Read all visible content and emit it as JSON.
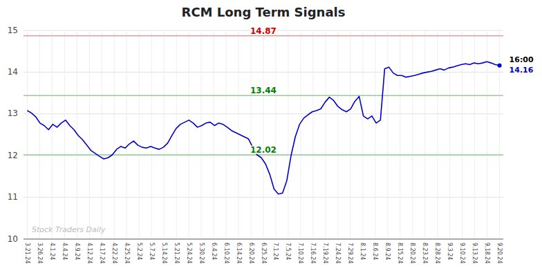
{
  "chart_data": {
    "type": "line",
    "title": "RCM Long Term Signals",
    "color": "#0000cc",
    "grid": true,
    "xlim": [
      -0.3,
      38.3
    ],
    "ylim": [
      10,
      15
    ],
    "yticks": [
      10,
      11,
      12,
      13,
      14,
      15
    ],
    "xticks": [
      {
        "value": 0,
        "label": "3.21.24"
      },
      {
        "value": 1,
        "label": "3.26.24"
      },
      {
        "value": 2,
        "label": "4.1.24"
      },
      {
        "value": 3,
        "label": "4.4.24"
      },
      {
        "value": 4,
        "label": "4.9.24"
      },
      {
        "value": 5,
        "label": "4.12.24"
      },
      {
        "value": 6,
        "label": "4.17.24"
      },
      {
        "value": 7,
        "label": "4.22.24"
      },
      {
        "value": 8,
        "label": "4.25.24"
      },
      {
        "value": 9,
        "label": "5.2.24"
      },
      {
        "value": 10,
        "label": "5.7.24"
      },
      {
        "value": 11,
        "label": "5.14.24"
      },
      {
        "value": 12,
        "label": "5.21.24"
      },
      {
        "value": 13,
        "label": "5.24.24"
      },
      {
        "value": 14,
        "label": "5.30.24"
      },
      {
        "value": 15,
        "label": "6.4.24"
      },
      {
        "value": 16,
        "label": "6.10.24"
      },
      {
        "value": 17,
        "label": "6.14.24"
      },
      {
        "value": 18,
        "label": "6.20.24"
      },
      {
        "value": 19,
        "label": "6.25.24"
      },
      {
        "value": 20,
        "label": "7.1.24"
      },
      {
        "value": 21,
        "label": "7.5.24"
      },
      {
        "value": 22,
        "label": "7.10.24"
      },
      {
        "value": 23,
        "label": "7.16.24"
      },
      {
        "value": 24,
        "label": "7.19.24"
      },
      {
        "value": 25,
        "label": "7.24.24"
      },
      {
        "value": 26,
        "label": "7.29.24"
      },
      {
        "value": 27,
        "label": "8.1.24"
      },
      {
        "value": 28,
        "label": "8.6.24"
      },
      {
        "value": 29,
        "label": "8.9.24"
      },
      {
        "value": 30,
        "label": "8.15.24"
      },
      {
        "value": 31,
        "label": "8.20.24"
      },
      {
        "value": 32,
        "label": "8.23.24"
      },
      {
        "value": 33,
        "label": "8.28.24"
      },
      {
        "value": 34,
        "label": "9.3.24"
      },
      {
        "value": 35,
        "label": "9.10.24"
      },
      {
        "value": 36,
        "label": "9.13.24"
      },
      {
        "value": 37,
        "label": "9.18.24"
      },
      {
        "value": 38,
        "label": "9.20.24"
      }
    ],
    "x": [
      0,
      0.3423,
      0.6847,
      1.027,
      1.3694,
      1.7117,
      2.0541,
      2.3964,
      2.7387,
      3.0811,
      3.4234,
      3.7658,
      4.1081,
      4.4505,
      4.7928,
      5.1351,
      5.4775,
      5.8198,
      6.1622,
      6.5045,
      6.8468,
      7.1892,
      7.5315,
      7.8739,
      8.2162,
      8.5586,
      8.9009,
      9.2432,
      9.5856,
      9.9279,
      10.2703,
      10.6126,
      10.955,
      11.2973,
      11.6396,
      11.982,
      12.3243,
      12.6667,
      13.009,
      13.3514,
      13.6937,
      14.036,
      14.3784,
      14.7207,
      15.0631,
      15.4054,
      15.7477,
      16.0901,
      16.4324,
      16.7748,
      17.1171,
      17.4595,
      17.8018,
      18.1441,
      18.4865,
      18.8288,
      19.1712,
      19.5135,
      19.8559,
      20.1982,
      20.5405,
      20.8829,
      21.2252,
      21.5676,
      21.9099,
      22.2523,
      22.5946,
      22.9369,
      23.2793,
      23.6216,
      23.964,
      24.3063,
      24.6486,
      24.991,
      25.3333,
      25.6757,
      26.018,
      26.3604,
      26.7027,
      27.045,
      27.3874,
      27.7297,
      28.0721,
      28.4144,
      28.7568,
      29.0991,
      29.4414,
      29.7838,
      30.1261,
      30.4685,
      30.8108,
      31.1532,
      31.4955,
      31.8378,
      32.1802,
      32.5225,
      32.8649,
      33.2072,
      33.5495,
      33.8919,
      34.2342,
      34.5766,
      34.9189,
      35.2613,
      35.6036,
      35.9459,
      36.2883,
      36.6306,
      36.973,
      37.3153,
      37.6577,
      38
    ],
    "values": [
      13.08,
      13.02,
      12.93,
      12.78,
      12.72,
      12.62,
      12.75,
      12.68,
      12.78,
      12.85,
      12.72,
      12.62,
      12.48,
      12.38,
      12.25,
      12.12,
      12.05,
      11.98,
      11.92,
      11.95,
      12.02,
      12.15,
      12.22,
      12.18,
      12.28,
      12.35,
      12.25,
      12.2,
      12.18,
      12.22,
      12.18,
      12.15,
      12.2,
      12.3,
      12.48,
      12.65,
      12.75,
      12.8,
      12.85,
      12.78,
      12.68,
      12.72,
      12.78,
      12.8,
      12.72,
      12.78,
      12.75,
      12.68,
      12.6,
      12.55,
      12.5,
      12.45,
      12.4,
      12.2,
      12.02,
      11.95,
      11.8,
      11.55,
      11.2,
      11.08,
      11.1,
      11.4,
      12.0,
      12.45,
      12.75,
      12.9,
      12.98,
      13.05,
      13.08,
      13.12,
      13.28,
      13.4,
      13.32,
      13.18,
      13.1,
      13.05,
      13.12,
      13.3,
      13.42,
      12.95,
      12.88,
      12.95,
      12.78,
      12.85,
      14.08,
      14.12,
      13.98,
      13.92,
      13.92,
      13.88,
      13.9,
      13.92,
      13.95,
      13.98,
      14.0,
      14.02,
      14.05,
      14.08,
      14.05,
      14.1,
      14.12,
      14.15,
      14.18,
      14.2,
      14.18,
      14.22,
      14.2,
      14.22,
      14.25,
      14.22,
      14.18,
      14.16
    ],
    "annotations": [
      {
        "value": 14.87,
        "label": "14.87",
        "color": "#cc0000"
      },
      {
        "value": 13.44,
        "label": "13.44",
        "color": "#008000"
      },
      {
        "value": 12.02,
        "label": "12.02",
        "color": "#008000"
      }
    ],
    "end_label_time": "16:00",
    "end_label_value": "14.16",
    "watermark": "Stock Traders Daily"
  }
}
